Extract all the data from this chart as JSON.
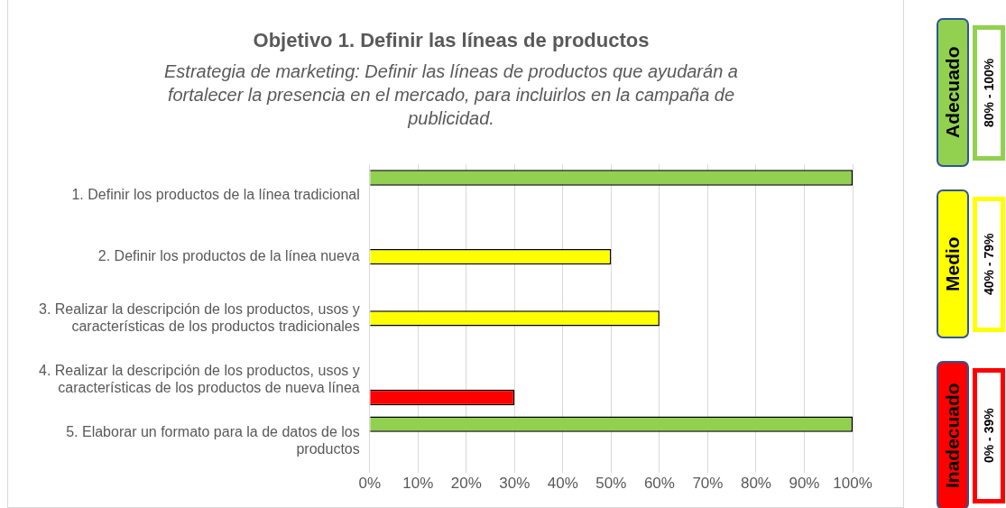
{
  "chart_data": {
    "type": "bar",
    "orientation": "horizontal",
    "title": "Objetivo 1. Definir las líneas de productos",
    "subtitle": "Estrategia de marketing: Definir las líneas de productos que ayudarán a fortalecer la presencia en el mercado, para incluirlos en la campaña de publicidad.",
    "categories": [
      "1. Definir los productos de la línea tradicional",
      "2. Definir los productos de la línea nueva",
      "3. Realizar la descripción de los productos, usos y características de los productos tradicionales",
      "4. Realizar la descripción de los productos, usos y características de los productos de nueva línea",
      "5. Elaborar un formato para la de datos de los productos"
    ],
    "series": [
      {
        "name": "Adecuado",
        "color": "#92d050",
        "values": [
          100,
          0,
          0,
          0,
          100
        ]
      },
      {
        "name": "Medio",
        "color": "#ffff00",
        "values": [
          0,
          50,
          60,
          0,
          0
        ]
      },
      {
        "name": "Inadecuado",
        "color": "#ff0000",
        "values": [
          0,
          0,
          0,
          30,
          0
        ]
      }
    ],
    "xlim": [
      0,
      100
    ],
    "xticks": [
      {
        "value": 0,
        "label": "0%"
      },
      {
        "value": 10,
        "label": "10%"
      },
      {
        "value": 20,
        "label": "20%"
      },
      {
        "value": 30,
        "label": "30%"
      },
      {
        "value": 40,
        "label": "40%"
      },
      {
        "value": 50,
        "label": "50%"
      },
      {
        "value": 60,
        "label": "60%"
      },
      {
        "value": 70,
        "label": "70%"
      },
      {
        "value": 80,
        "label": "80%"
      },
      {
        "value": 90,
        "label": "90%"
      },
      {
        "value": 100,
        "label": "100%"
      }
    ],
    "grid": "x",
    "legend": "right",
    "annotations": [
      "80% - 100%",
      "40% - 79%",
      "0% - 39%"
    ]
  }
}
